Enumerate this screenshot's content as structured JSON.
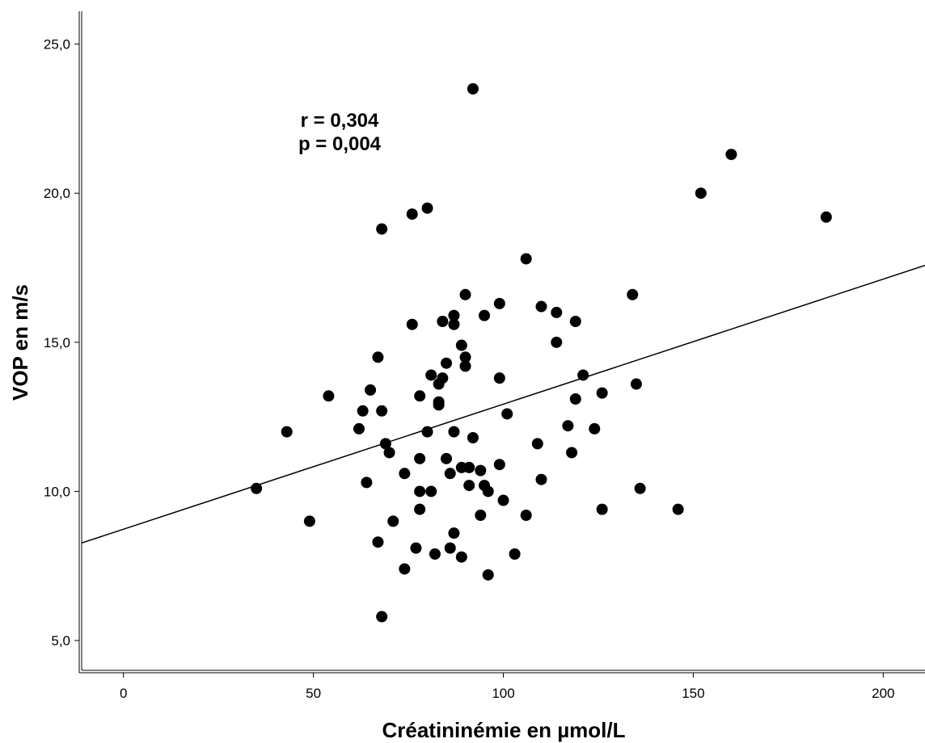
{
  "chart_data": {
    "type": "scatter",
    "title": "",
    "xlabel": "Créatininémie en µmol/L",
    "ylabel": "VOP en m/s",
    "xlim": [
      -11,
      211
    ],
    "ylim": [
      4,
      26.1
    ],
    "x_ticks": [
      0,
      50,
      100,
      150,
      200
    ],
    "x_tick_labels": [
      "0",
      "50",
      "100",
      "150",
      "200"
    ],
    "y_ticks": [
      5,
      10,
      15,
      20,
      25
    ],
    "y_tick_labels": [
      "5,0",
      "10,0",
      "15,0",
      "20,0",
      "25,0"
    ],
    "grid": false,
    "annotations": [
      "r = 0,304",
      "p = 0,004"
    ],
    "regression_line": {
      "x": [
        -11,
        211
      ],
      "y": [
        8.27,
        17.58
      ]
    },
    "points": [
      {
        "x": 35,
        "y": 10.1
      },
      {
        "x": 43,
        "y": 12.0
      },
      {
        "x": 49,
        "y": 9.0
      },
      {
        "x": 54,
        "y": 13.2
      },
      {
        "x": 62,
        "y": 12.1
      },
      {
        "x": 63,
        "y": 12.7
      },
      {
        "x": 64,
        "y": 10.3
      },
      {
        "x": 65,
        "y": 13.4
      },
      {
        "x": 67,
        "y": 14.5
      },
      {
        "x": 67,
        "y": 8.3
      },
      {
        "x": 68,
        "y": 12.7
      },
      {
        "x": 68,
        "y": 18.8
      },
      {
        "x": 68,
        "y": 5.8
      },
      {
        "x": 69,
        "y": 11.6
      },
      {
        "x": 70,
        "y": 11.3
      },
      {
        "x": 71,
        "y": 9.0
      },
      {
        "x": 74,
        "y": 10.6
      },
      {
        "x": 74,
        "y": 7.4
      },
      {
        "x": 76,
        "y": 15.6
      },
      {
        "x": 76,
        "y": 19.3
      },
      {
        "x": 77,
        "y": 8.1
      },
      {
        "x": 78,
        "y": 13.2
      },
      {
        "x": 78,
        "y": 11.1
      },
      {
        "x": 78,
        "y": 10.0
      },
      {
        "x": 78,
        "y": 9.4
      },
      {
        "x": 80,
        "y": 19.5
      },
      {
        "x": 80,
        "y": 12.0
      },
      {
        "x": 81,
        "y": 13.9
      },
      {
        "x": 81,
        "y": 10.0
      },
      {
        "x": 82,
        "y": 7.9
      },
      {
        "x": 83,
        "y": 13.6
      },
      {
        "x": 83,
        "y": 13.0
      },
      {
        "x": 83,
        "y": 12.9
      },
      {
        "x": 84,
        "y": 15.7
      },
      {
        "x": 84,
        "y": 13.8
      },
      {
        "x": 85,
        "y": 14.3
      },
      {
        "x": 85,
        "y": 11.1
      },
      {
        "x": 86,
        "y": 10.6
      },
      {
        "x": 86,
        "y": 8.1
      },
      {
        "x": 87,
        "y": 15.9
      },
      {
        "x": 87,
        "y": 15.6
      },
      {
        "x": 87,
        "y": 12.0
      },
      {
        "x": 87,
        "y": 8.6
      },
      {
        "x": 89,
        "y": 14.9
      },
      {
        "x": 89,
        "y": 10.8
      },
      {
        "x": 89,
        "y": 7.8
      },
      {
        "x": 90,
        "y": 16.6
      },
      {
        "x": 90,
        "y": 14.5
      },
      {
        "x": 90,
        "y": 14.2
      },
      {
        "x": 91,
        "y": 10.8
      },
      {
        "x": 91,
        "y": 10.2
      },
      {
        "x": 92,
        "y": 23.5
      },
      {
        "x": 92,
        "y": 11.8
      },
      {
        "x": 94,
        "y": 10.7
      },
      {
        "x": 94,
        "y": 9.2
      },
      {
        "x": 95,
        "y": 15.9
      },
      {
        "x": 95,
        "y": 10.2
      },
      {
        "x": 96,
        "y": 10.0
      },
      {
        "x": 96,
        "y": 7.2
      },
      {
        "x": 99,
        "y": 16.3
      },
      {
        "x": 99,
        "y": 13.8
      },
      {
        "x": 99,
        "y": 10.9
      },
      {
        "x": 100,
        "y": 9.7
      },
      {
        "x": 101,
        "y": 12.6
      },
      {
        "x": 103,
        "y": 7.9
      },
      {
        "x": 106,
        "y": 17.8
      },
      {
        "x": 106,
        "y": 9.2
      },
      {
        "x": 109,
        "y": 11.6
      },
      {
        "x": 110,
        "y": 16.2
      },
      {
        "x": 110,
        "y": 10.4
      },
      {
        "x": 114,
        "y": 16.0
      },
      {
        "x": 114,
        "y": 15.0
      },
      {
        "x": 117,
        "y": 12.2
      },
      {
        "x": 118,
        "y": 11.3
      },
      {
        "x": 119,
        "y": 15.7
      },
      {
        "x": 119,
        "y": 13.1
      },
      {
        "x": 121,
        "y": 13.9
      },
      {
        "x": 124,
        "y": 12.1
      },
      {
        "x": 126,
        "y": 13.3
      },
      {
        "x": 126,
        "y": 9.4
      },
      {
        "x": 134,
        "y": 16.6
      },
      {
        "x": 135,
        "y": 13.6
      },
      {
        "x": 136,
        "y": 10.1
      },
      {
        "x": 146,
        "y": 9.4
      },
      {
        "x": 152,
        "y": 20.0
      },
      {
        "x": 160,
        "y": 21.3
      },
      {
        "x": 185,
        "y": 19.2
      }
    ]
  }
}
